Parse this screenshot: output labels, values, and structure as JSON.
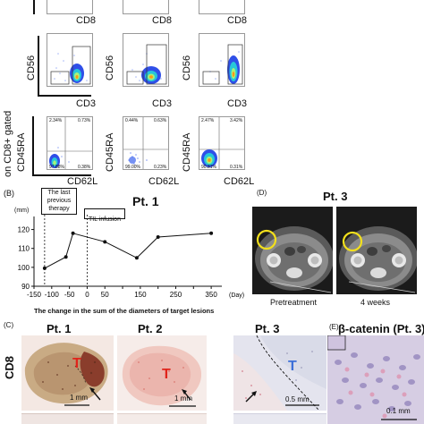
{
  "panel_a": {
    "gate_label_line1": "on CD8+ gated",
    "rows": [
      {
        "x_label": "CD8",
        "y_label": ""
      },
      {
        "x_label": "CD3",
        "y_label": "CD56"
      },
      {
        "x_label": "CD62L",
        "y_label": "CD45RA"
      }
    ],
    "row3_quadrants": [
      [
        "2.34%",
        "0.73%",
        "97.88%",
        "0.38%"
      ],
      [
        "0.44%",
        "0.63%",
        "99.00%",
        "0.23%"
      ],
      [
        "2.47%",
        "3.42%",
        "90.81%",
        "0.31%"
      ]
    ]
  },
  "panel_b": {
    "letter": "(B)",
    "title": "Pt. 1",
    "box1_lines": [
      "The last",
      "previous",
      "therapy"
    ],
    "box2_label": "TIL infusion",
    "y_unit": "(mm)",
    "x_unit": "(Day)",
    "caption": "The change in the sum of the diameters of target lesions"
  },
  "panel_d": {
    "letter": "(D)",
    "title": "Pt. 3",
    "left_caption": "Pretreatment",
    "right_caption": "4 weeks"
  },
  "panel_c": {
    "letter": "(C)",
    "row_label": "CD8",
    "images": [
      {
        "title": "Pt. 1",
        "tumor_label": "T",
        "scale": "1 mm"
      },
      {
        "title": "Pt. 2",
        "tumor_label": "T",
        "scale": "1 mm"
      },
      {
        "title": "Pt. 3",
        "tumor_label": "T",
        "scale": "0.5 mm"
      }
    ]
  },
  "panel_e": {
    "letter": "(E)",
    "title": "β-catenin (Pt. 3)",
    "scale": "0.1 mm"
  },
  "colors": {
    "ihc_background": "#f3e6e2",
    "tumor_label": "#e0241b",
    "ct_circle": "#f2df1c"
  },
  "chart_data": {
    "type": "line",
    "title": "Pt. 1",
    "xlabel": "(Day)",
    "ylabel": "(mm)",
    "x": [
      -120,
      -60,
      -40,
      50,
      140,
      200,
      350
    ],
    "values": [
      99.5,
      105.5,
      118,
      113.5,
      105,
      116,
      118
    ],
    "xlim": [
      -150,
      380
    ],
    "ylim": [
      90,
      125
    ],
    "xticks": [
      -150,
      -100,
      -50,
      0,
      50,
      100,
      150,
      200,
      250,
      300,
      350
    ],
    "yticks": [
      90,
      100,
      110,
      120
    ],
    "markers": [
      {
        "label": "The last previous therapy",
        "x": -120
      },
      {
        "label": "TIL infusion",
        "x": 0
      }
    ]
  }
}
